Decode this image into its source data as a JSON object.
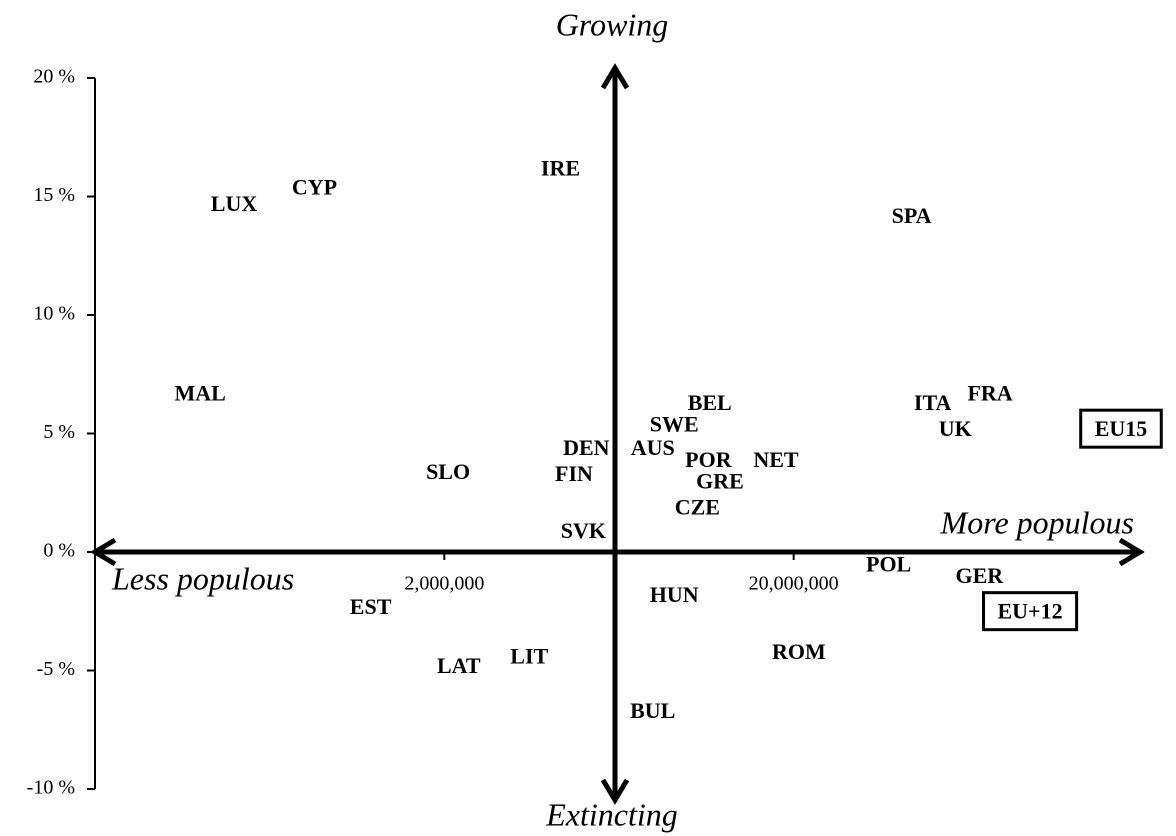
{
  "chart_data": {
    "type": "scatter",
    "annotations": {
      "top": "Growing",
      "bottom": "Extincting",
      "right": "More populous",
      "left": "Less populous"
    },
    "labels": [
      "LUX",
      "CYP",
      "IRE",
      "SPA",
      "MAL",
      "BEL",
      "SWE",
      "ITA",
      "FRA",
      "UK",
      "DEN",
      "AUS",
      "SLO",
      "FIN",
      "POR",
      "NET",
      "GRE",
      "CZE",
      "SVK",
      "POL",
      "GER",
      "HUN",
      "EST",
      "ROM",
      "LIT",
      "LAT",
      "BUL",
      "EU15",
      "EU+12"
    ],
    "x": [
      500000,
      850000,
      4300000,
      43500000,
      400000,
      11500000,
      9100000,
      50000000,
      73000000,
      58000000,
      5100000,
      7900000,
      2050000,
      4700000,
      11400000,
      17800000,
      12300000,
      10600000,
      5000000,
      37400000,
      68000000,
      9100000,
      1230000,
      20700000,
      3500000,
      2200000,
      7900000,
      173000000,
      95000000
    ],
    "y": [
      14.6,
      15.3,
      16.1,
      14.1,
      6.6,
      6.2,
      5.3,
      6.2,
      6.6,
      5.1,
      4.3,
      4.3,
      3.3,
      3.2,
      3.8,
      3.8,
      2.9,
      1.8,
      0.8,
      -0.6,
      -1.1,
      -1.9,
      -2.4,
      -4.3,
      -4.5,
      -4.9,
      -6.8,
      5.1,
      -2.6
    ],
    "boxed": [
      false,
      false,
      false,
      false,
      false,
      false,
      false,
      false,
      false,
      false,
      false,
      false,
      false,
      false,
      false,
      false,
      false,
      false,
      false,
      false,
      false,
      false,
      false,
      false,
      false,
      false,
      false,
      true,
      true
    ],
    "xscale": "log",
    "xlim": [
      200000,
      200000000
    ],
    "xticks": [
      {
        "value": 2000000,
        "label": "2,000,000"
      },
      {
        "value": 20000000,
        "label": "20,000,000"
      }
    ],
    "ylim": [
      -10,
      20
    ],
    "yticks": [
      {
        "value": -10,
        "label": "-10 %"
      },
      {
        "value": -5,
        "label": "-5 %"
      },
      {
        "value": 0,
        "label": "0 %"
      },
      {
        "value": 5,
        "label": "5 %"
      },
      {
        "value": 10,
        "label": "10 %"
      },
      {
        "value": 15,
        "label": "15 %"
      },
      {
        "value": 20,
        "label": "20 %"
      }
    ]
  }
}
